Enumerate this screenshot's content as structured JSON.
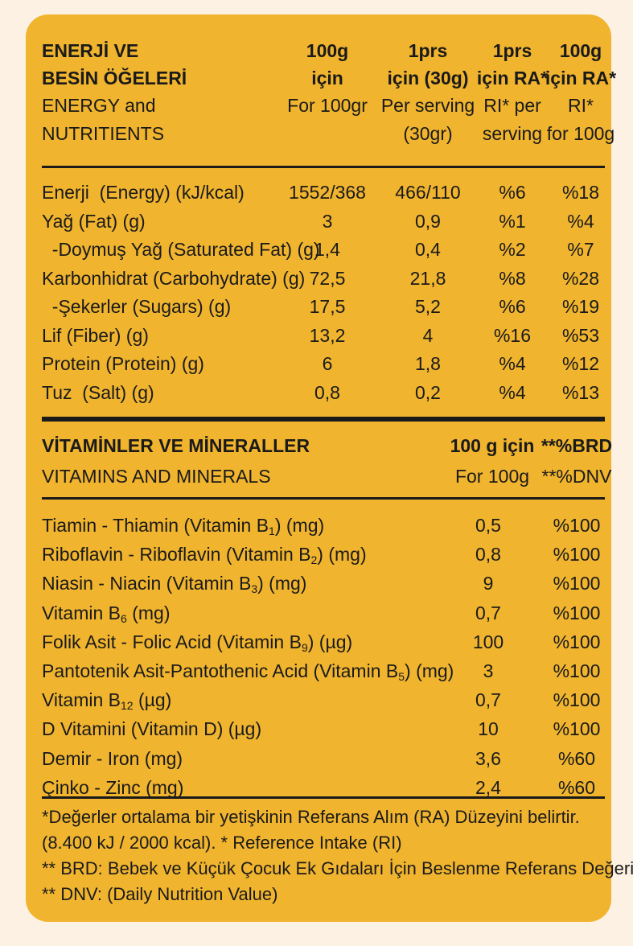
{
  "header": {
    "title_tr_line1": "ENERJİ VE",
    "title_tr_line2": "BESİN ÖĞELERİ",
    "title_en_line1": "ENERGY and",
    "title_en_line2": "NUTRITIENTS",
    "col1_tr_line1": "100g",
    "col1_tr_line2": "için",
    "col1_en_line1": "For 100gr",
    "col2_tr_line1": "1prs",
    "col2_tr_line2": "için (30g)",
    "col2_en_line1": "Per serving",
    "col2_en_line2": "(30gr)",
    "col3_tr_line1": "1prs",
    "col3_tr_line2": "için RA*",
    "col3_en_line1": "RI* per",
    "col3_en_line2": "serving",
    "col4_tr_line1": "100g",
    "col4_tr_line2": "için RA*",
    "col4_en_line1": "RI*",
    "col4_en_line2": "for 100g"
  },
  "nutrients": [
    {
      "name": "Enerji  (Energy) (kJ/kcal)",
      "per100": "1552/368",
      "perServing": "466/110",
      "riServing": "%6",
      "ri100": "%18"
    },
    {
      "name": "Yağ (Fat) (g)",
      "per100": "3",
      "perServing": "0,9",
      "riServing": "%1",
      "ri100": "%4"
    },
    {
      "name": "  -Doymuş Yağ (Saturated Fat) (g)",
      "per100": "1,4",
      "perServing": "0,4",
      "riServing": "%2",
      "ri100": "%7"
    },
    {
      "name": "Karbonhidrat (Carbohydrate) (g)",
      "per100": "72,5",
      "perServing": "21,8",
      "riServing": "%8",
      "ri100": "%28"
    },
    {
      "name": "  -Şekerler (Sugars) (g)",
      "per100": "17,5",
      "perServing": "5,2",
      "riServing": "%6",
      "ri100": "%19"
    },
    {
      "name": "Lif (Fiber) (g)",
      "per100": "13,2",
      "perServing": "4",
      "riServing": "%16",
      "ri100": "%53"
    },
    {
      "name": "Protein (Protein) (g)",
      "per100": "6",
      "perServing": "1,8",
      "riServing": "%4",
      "ri100": "%12"
    },
    {
      "name": "Tuz  (Salt) (g)",
      "per100": "0,8",
      "perServing": "0,2",
      "riServing": "%4",
      "ri100": "%13"
    }
  ],
  "vitamins_header": {
    "title_tr": "VİTAMİNLER VE MİNERALLER",
    "title_en": "VITAMINS AND MINERALS",
    "col1_tr": "100 g için",
    "col1_en": "For 100g",
    "col2_tr": "**%BRD",
    "col2_en": "**%DNV"
  },
  "vitamins": [
    {
      "pre": "Tiamin - Thiamin (Vitamin B",
      "sub": "1",
      "post": ") (mg)",
      "value": "0,5",
      "brd": "%100"
    },
    {
      "pre": "Riboflavin - Riboflavin  (Vitamin B",
      "sub": "2",
      "post": ") (mg)",
      "value": "0,8",
      "brd": "%100"
    },
    {
      "pre": "Niasin - Niacin (Vitamin B",
      "sub": "3",
      "post": ") (mg)",
      "value": "9",
      "brd": "%100"
    },
    {
      "pre": "Vitamin B",
      "sub": "6",
      "post": " (mg)",
      "value": "0,7",
      "brd": "%100"
    },
    {
      "pre": "Folik Asit - Folic Acid (Vitamin B",
      "sub": "9",
      "post": ") (µg)",
      "value": "100",
      "brd": "%100"
    },
    {
      "pre": "Pantotenik Asit-Pantothenic Acid  (Vitamin B",
      "sub": "5",
      "post": ") (mg)",
      "value": "3",
      "brd": "%100"
    },
    {
      "pre": "Vitamin B",
      "sub": "12",
      "post": " (µg)",
      "value": "0,7",
      "brd": "%100"
    },
    {
      "pre": "D Vitamini (Vitamin D) (µg)",
      "sub": "",
      "post": "",
      "value": "10",
      "brd": "%100"
    },
    {
      "pre": "Demir - Iron (mg)",
      "sub": "",
      "post": "",
      "value": "3,6",
      "brd": "%60"
    },
    {
      "pre": "Çinko - Zinc (mg)",
      "sub": "",
      "post": "",
      "value": "2,4",
      "brd": "%60"
    }
  ],
  "footnotes": [
    "*Değerler ortalama bir yetişkinin Referans Alım (RA) Düzeyini belirtir.",
    "(8.400 kJ / 2000 kcal). * Reference Intake (RI)",
    "** BRD: Bebek ve Küçük Çocuk Ek Gıdaları İçin Beslenme Referans Değeri",
    "** DNV: (Daily Nutrition Value)"
  ],
  "colors": {
    "panel": "#f0b42e",
    "page": "#fcf1e2",
    "text": "#1a1a1a"
  }
}
